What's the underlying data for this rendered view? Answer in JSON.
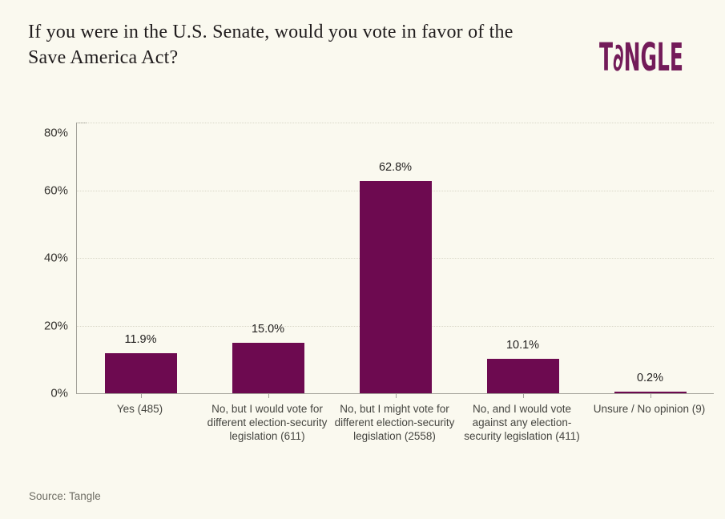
{
  "header": {
    "title": "If you were in the U.S. Senate, would you vote in favor of the Save America Act?",
    "brand_name": "Tangle",
    "brand_wordmark": "T∂NGLE"
  },
  "footer": {
    "source": "Source: Tangle"
  },
  "colors": {
    "background": "#faf9ef",
    "bar": "#6d0a50",
    "brand": "#731b59",
    "axis": "#a3a29a",
    "grid": "#d9d7c8",
    "title_text": "#211d1e",
    "axis_label_text": "#454540"
  },
  "chart_data": {
    "type": "bar",
    "title": "If you were in the U.S. Senate, would you vote in favor of the Save America Act?",
    "categories": [
      "Yes (485)",
      "No, but I would vote for different election-security legislation (611)",
      "No, but I might vote for different election-security legislation (2558)",
      "No, and I would vote against any election-security legislation (411)",
      "Unsure / No opinion (9)"
    ],
    "values": [
      11.9,
      15.0,
      62.8,
      10.1,
      0.2
    ],
    "value_labels": [
      "11.9%",
      "15.0%",
      "62.8%",
      "10.1%",
      "0.2%"
    ],
    "counts": [
      485,
      611,
      2558,
      411,
      9
    ],
    "xlabel": "",
    "ylabel": "",
    "ylim": [
      0,
      80
    ],
    "y_ticks": [
      0,
      20,
      40,
      60,
      80
    ],
    "y_tick_labels": [
      "0%",
      "20%",
      "40%",
      "60%",
      "80%"
    ],
    "grid": "horizontal-dotted",
    "legend": "none",
    "bar_color": "#6d0a50",
    "source": "Source: Tangle"
  }
}
